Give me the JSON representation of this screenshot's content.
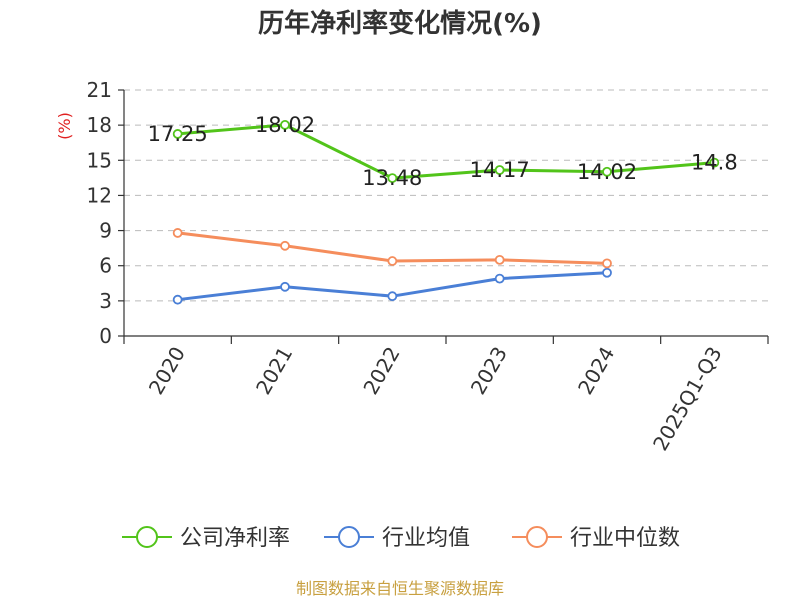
{
  "chart_data": {
    "type": "line",
    "title": "历年净利率变化情况(%)",
    "unit_label": "(%)",
    "categories": [
      "2020",
      "2021",
      "2022",
      "2023",
      "2024",
      "2025Q1-Q3"
    ],
    "ylim": [
      0,
      21
    ],
    "yticks": [
      0,
      3,
      6,
      9,
      12,
      15,
      18,
      21
    ],
    "grid": true,
    "legend_position": "bottom",
    "series": [
      {
        "name": "公司净利率",
        "color": "#52c41a",
        "values": [
          17.25,
          18.02,
          13.48,
          14.17,
          14.02,
          14.8
        ],
        "labels": [
          "17.25",
          "18.02",
          "13.48",
          "14.17",
          "14.02",
          "14.8"
        ]
      },
      {
        "name": "行业均值",
        "color": "#4a7fd6",
        "values": [
          3.1,
          4.2,
          3.4,
          4.9,
          5.4,
          null
        ]
      },
      {
        "name": "行业中位数",
        "color": "#f58d5c",
        "values": [
          8.8,
          7.7,
          6.4,
          6.5,
          6.2,
          null
        ]
      }
    ],
    "source": "制图数据来自恒生聚源数据库"
  }
}
